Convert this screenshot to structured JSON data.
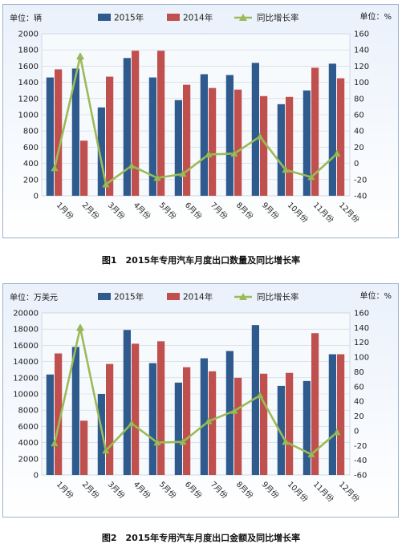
{
  "chart_data": [
    {
      "type": "bar",
      "title": "",
      "caption": "图1　2015年专用汽车月度出口数量及同比增长率",
      "left_unit": "单位：辆",
      "right_unit": "单位：%",
      "categories": [
        "1月份",
        "2月份",
        "3月份",
        "4月份",
        "5月份",
        "6月份",
        "7月份",
        "8月份",
        "9月份",
        "10月份",
        "11月份",
        "12月份"
      ],
      "series": [
        {
          "name": "2015年",
          "kind": "bar",
          "axis": "left",
          "color": "#2e5a8e",
          "values": [
            1460,
            1570,
            1090,
            1700,
            1460,
            1180,
            1500,
            1490,
            1640,
            1130,
            1300,
            1630
          ]
        },
        {
          "name": "2014年",
          "kind": "bar",
          "axis": "left",
          "color": "#c0504d",
          "values": [
            1560,
            680,
            1470,
            1790,
            1790,
            1370,
            1330,
            1310,
            1230,
            1220,
            1580,
            1450
          ]
        },
        {
          "name": "同比增长率",
          "kind": "line",
          "axis": "right",
          "color": "#9bbb59",
          "values": [
            -6,
            132,
            -26,
            -3,
            -18,
            -13,
            11,
            12,
            33,
            -8,
            -17,
            12
          ]
        }
      ],
      "yleft": {
        "min": 0,
        "max": 2000,
        "step": 200
      },
      "yright": {
        "min": -40,
        "max": 160,
        "step": 20
      },
      "legend": "top"
    },
    {
      "type": "bar",
      "title": "",
      "caption": "图2　2015年专用汽车月度出口金额及同比增长率",
      "left_unit": "单位：万美元",
      "right_unit": "单位：%",
      "categories": [
        "1月份",
        "2月份",
        "3月份",
        "4月份",
        "5月份",
        "6月份",
        "7月份",
        "8月份",
        "9月份",
        "10月份",
        "11月份",
        "12月份"
      ],
      "series": [
        {
          "name": "2015年",
          "kind": "bar",
          "axis": "left",
          "color": "#2e5a8e",
          "values": [
            12400,
            15800,
            10000,
            17900,
            13800,
            11400,
            14400,
            15300,
            18500,
            11000,
            11600,
            14900
          ]
        },
        {
          "name": "2014年",
          "kind": "bar",
          "axis": "left",
          "color": "#c0504d",
          "values": [
            15000,
            6700,
            13700,
            16200,
            16500,
            13300,
            12800,
            12000,
            12500,
            12600,
            17500,
            14900
          ]
        },
        {
          "name": "同比增长率",
          "kind": "line",
          "axis": "right",
          "color": "#9bbb59",
          "values": [
            -17,
            140,
            -27,
            10,
            -16,
            -15,
            13,
            27,
            48,
            -15,
            -32,
            -2
          ]
        }
      ],
      "yleft": {
        "min": 0,
        "max": 20000,
        "step": 2000
      },
      "yright": {
        "min": -60,
        "max": 160,
        "step": 20
      },
      "legend": "top"
    }
  ]
}
